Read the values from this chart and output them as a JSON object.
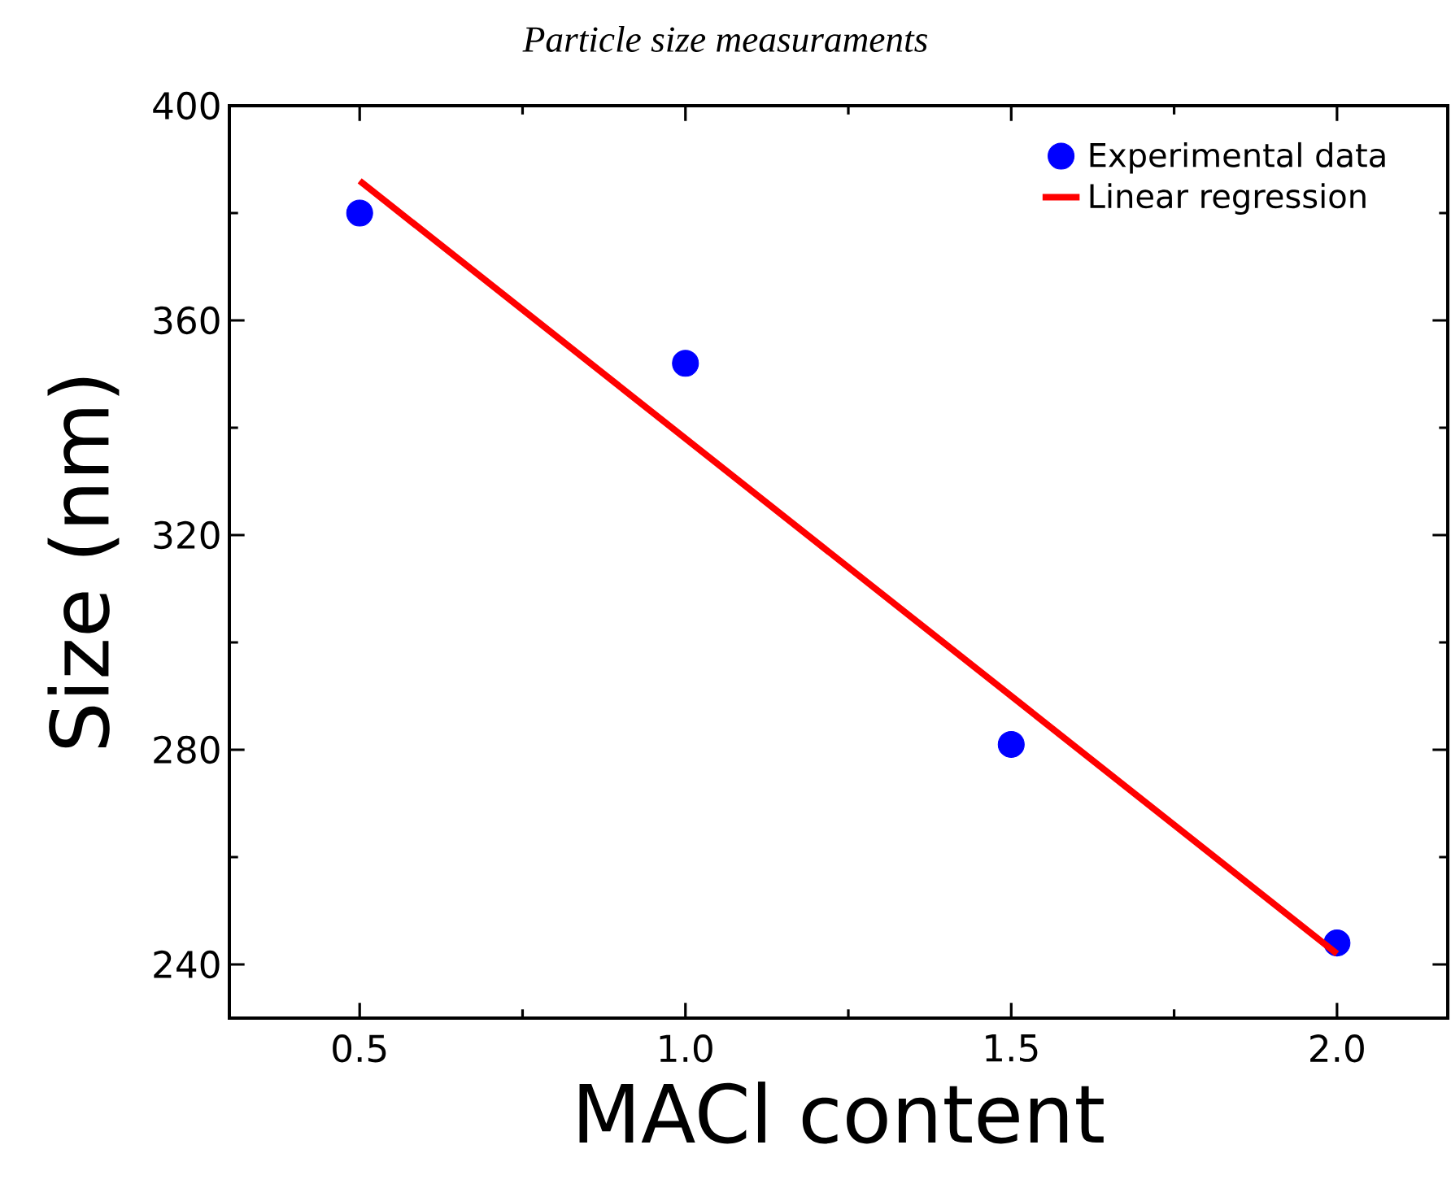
{
  "chart_data": {
    "type": "scatter",
    "title": "*Particle size measuraments*",
    "xlabel": "MACl content",
    "ylabel": "Size (nm)",
    "xlim": [
      0.3,
      2.17
    ],
    "ylim": [
      230,
      400
    ],
    "xticks": [
      {
        "value": 0.5,
        "label": "0.5"
      },
      {
        "value": 1.0,
        "label": "1.0"
      },
      {
        "value": 1.5,
        "label": "1.5"
      },
      {
        "value": 2.0,
        "label": "2.0"
      }
    ],
    "yticks": [
      240,
      280,
      320,
      360,
      400
    ],
    "grid": false,
    "legend": "top right",
    "series": [
      {
        "name": "Experimental data",
        "type": "scatter",
        "marker": "circle",
        "color": "#0000ff",
        "x": [
          0.5,
          1.0,
          1.5,
          2.0
        ],
        "values": [
          380,
          352,
          281,
          244
        ]
      },
      {
        "name": "Linear regression",
        "type": "line",
        "marker": "none",
        "line_style": "solid",
        "color": "#ff0000",
        "x": [
          0.5,
          2.0
        ],
        "values": [
          386,
          242
        ]
      }
    ]
  }
}
